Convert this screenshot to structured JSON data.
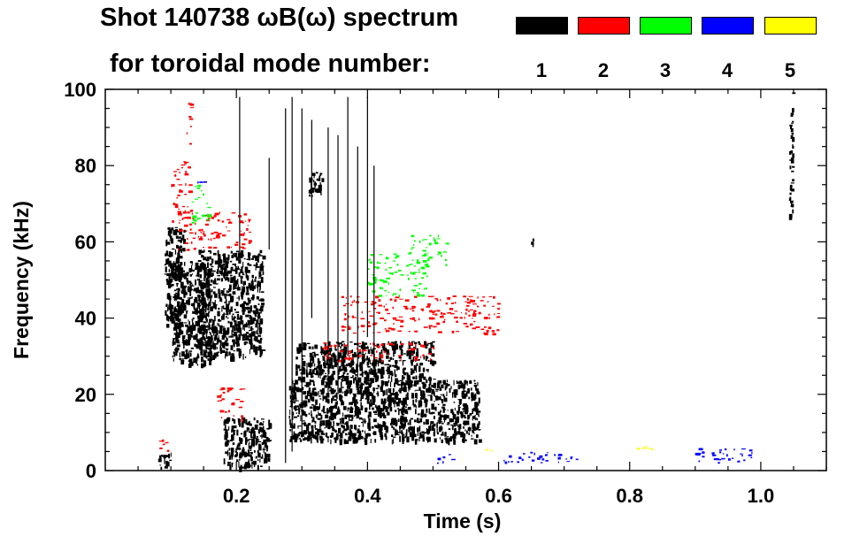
{
  "title": {
    "line1": "Shot 140738 ωB(ω) spectrum",
    "line2": "for toroidal mode number:"
  },
  "legend": [
    {
      "label": "1",
      "color": "#000000"
    },
    {
      "label": "2",
      "color": "#ff0000"
    },
    {
      "label": "3",
      "color": "#00ff00"
    },
    {
      "label": "4",
      "color": "#0000ff"
    },
    {
      "label": "5",
      "color": "#ffff00"
    }
  ],
  "chart_data": {
    "type": "heatmap",
    "title": "Shot 140738 ωB(ω) spectrum",
    "xlabel": "Time (s)",
    "ylabel": "Frequency (kHz)",
    "xlim": [
      0.0,
      1.1
    ],
    "ylim": [
      0,
      100
    ],
    "x_ticks": [
      0.2,
      0.4,
      0.6,
      0.8,
      1.0
    ],
    "x_tick_labels": [
      "0.2",
      "0.4",
      "0.6",
      "0.8",
      "1.0"
    ],
    "y_ticks": [
      0,
      20,
      40,
      60,
      80,
      100
    ],
    "y_tick_labels": [
      "0",
      "20",
      "40",
      "60",
      "80",
      "100"
    ],
    "grid": false,
    "legend_position": "top-right",
    "series": [
      {
        "name": "1",
        "color": "#000000",
        "blobs": [
          {
            "t0": 0.09,
            "t1": 0.12,
            "f0": 38,
            "f1": 64
          },
          {
            "t0": 0.1,
            "t1": 0.16,
            "f0": 28,
            "f1": 55
          },
          {
            "t0": 0.14,
            "t1": 0.24,
            "f0": 30,
            "f1": 58
          },
          {
            "t0": 0.18,
            "t1": 0.25,
            "f0": 1,
            "f1": 14
          },
          {
            "t0": 0.28,
            "t1": 0.57,
            "f0": 8,
            "f1": 24
          },
          {
            "t0": 0.31,
            "t1": 0.33,
            "f0": 72,
            "f1": 79
          },
          {
            "t0": 0.29,
            "t1": 0.5,
            "f0": 24,
            "f1": 34
          },
          {
            "t0": 0.08,
            "t1": 0.1,
            "f0": 1,
            "f1": 5
          },
          {
            "t0": 0.648,
            "t1": 0.654,
            "f0": 59.5,
            "f1": 61
          },
          {
            "t0": 1.043,
            "t1": 1.048,
            "f0": 67,
            "f1": 100
          }
        ]
      },
      {
        "name": "2",
        "color": "#ff0000",
        "blobs": [
          {
            "t0": 0.11,
            "t1": 0.22,
            "f0": 58,
            "f1": 68
          },
          {
            "t0": 0.1,
            "t1": 0.13,
            "f0": 65,
            "f1": 82
          },
          {
            "t0": 0.12,
            "t1": 0.13,
            "f0": 85,
            "f1": 97
          },
          {
            "t0": 0.36,
            "t1": 0.6,
            "f0": 36,
            "f1": 46
          },
          {
            "t0": 0.33,
            "t1": 0.5,
            "f0": 29,
            "f1": 34
          },
          {
            "t0": 0.17,
            "t1": 0.21,
            "f0": 13,
            "f1": 22
          },
          {
            "t0": 0.08,
            "t1": 0.1,
            "f0": 5,
            "f1": 9
          }
        ]
      },
      {
        "name": "3",
        "color": "#00ff00",
        "blobs": [
          {
            "t0": 0.13,
            "t1": 0.16,
            "f0": 65,
            "f1": 75
          },
          {
            "t0": 0.4,
            "t1": 0.49,
            "f0": 46,
            "f1": 57
          },
          {
            "t0": 0.46,
            "t1": 0.52,
            "f0": 54,
            "f1": 62
          }
        ]
      },
      {
        "name": "4",
        "color": "#0000ff",
        "blobs": [
          {
            "t0": 0.5,
            "t1": 0.53,
            "f0": 2,
            "f1": 5
          },
          {
            "t0": 0.6,
            "t1": 0.72,
            "f0": 2,
            "f1": 5
          },
          {
            "t0": 0.89,
            "t1": 0.99,
            "f0": 2,
            "f1": 6
          },
          {
            "t0": 0.14,
            "t1": 0.15,
            "f0": 73,
            "f1": 76
          }
        ]
      },
      {
        "name": "5",
        "color": "#ffff00",
        "blobs": [
          {
            "t0": 0.81,
            "t1": 0.84,
            "f0": 5,
            "f1": 7
          },
          {
            "t0": 0.57,
            "t1": 0.59,
            "f0": 5,
            "f1": 6
          }
        ]
      }
    ]
  }
}
